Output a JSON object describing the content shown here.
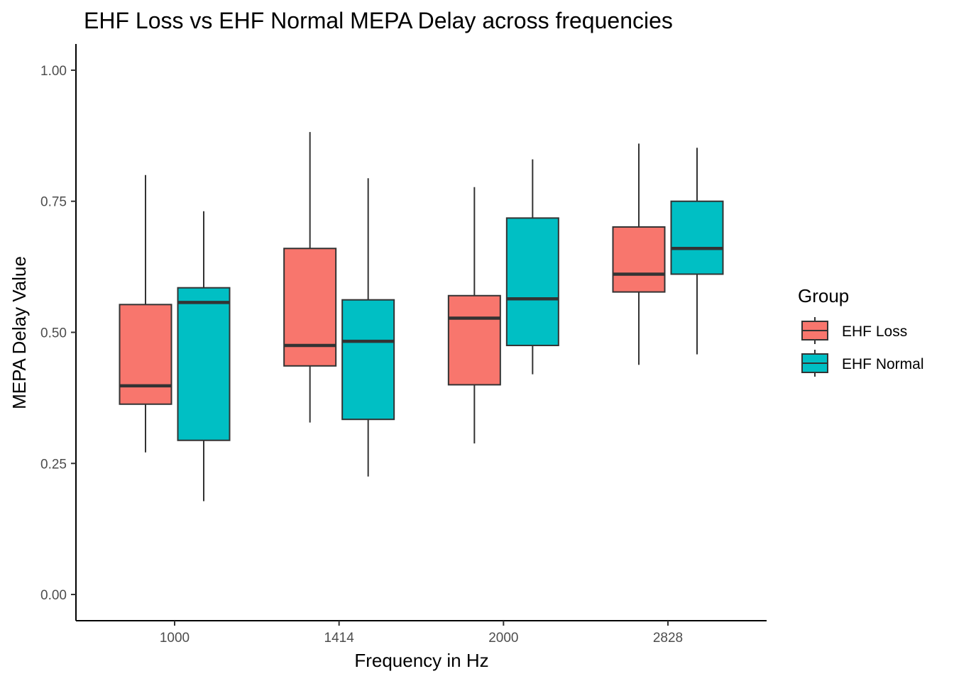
{
  "chart_data": {
    "type": "boxplot",
    "title": "EHF Loss vs EHF Normal MEPA Delay across frequencies",
    "xlabel": "Frequency in Hz",
    "ylabel": "MEPA Delay Value",
    "categories": [
      "1000",
      "1414",
      "2000",
      "2828"
    ],
    "ylim": [
      -0.05,
      1.05
    ],
    "y_ticks": [
      {
        "value": 0.0,
        "label": "0.00"
      },
      {
        "value": 0.25,
        "label": "0.25"
      },
      {
        "value": 0.5,
        "label": "0.50"
      },
      {
        "value": 0.75,
        "label": "0.75"
      },
      {
        "value": 1.0,
        "label": "1.00"
      }
    ],
    "grid": false,
    "legend": {
      "title": "Group",
      "position": "right"
    },
    "series": [
      {
        "name": "EHF Loss",
        "color": "#F8766D",
        "boxes": [
          {
            "min": 0.271,
            "q1": 0.363,
            "median": 0.398,
            "q3": 0.553,
            "max": 0.8
          },
          {
            "min": 0.328,
            "q1": 0.436,
            "median": 0.475,
            "q3": 0.66,
            "max": 0.882
          },
          {
            "min": 0.288,
            "q1": 0.4,
            "median": 0.527,
            "q3": 0.57,
            "max": 0.777
          },
          {
            "min": 0.438,
            "q1": 0.577,
            "median": 0.611,
            "q3": 0.701,
            "max": 0.86
          }
        ]
      },
      {
        "name": "EHF Normal",
        "color": "#00BFC4",
        "boxes": [
          {
            "min": 0.178,
            "q1": 0.294,
            "median": 0.557,
            "q3": 0.585,
            "max": 0.731
          },
          {
            "min": 0.225,
            "q1": 0.334,
            "median": 0.483,
            "q3": 0.562,
            "max": 0.794
          },
          {
            "min": 0.42,
            "q1": 0.475,
            "median": 0.564,
            "q3": 0.718,
            "max": 0.83
          },
          {
            "min": 0.458,
            "q1": 0.611,
            "median": 0.66,
            "q3": 0.75,
            "max": 0.852
          }
        ]
      }
    ]
  }
}
